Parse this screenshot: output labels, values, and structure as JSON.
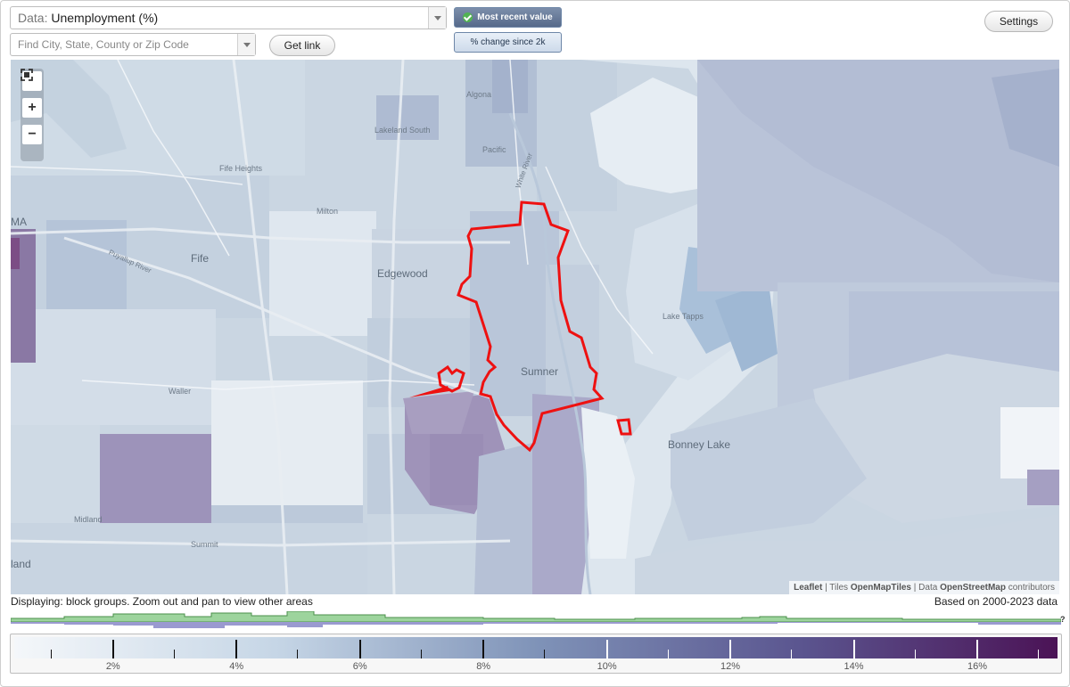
{
  "controls": {
    "data_label": "Data:",
    "data_value": "Unemployment (%)",
    "search_placeholder": "Find City, State, County or Zip Code",
    "get_link": "Get link",
    "most_recent": "Most recent value",
    "pct_change": "% change since 2k",
    "settings": "Settings"
  },
  "map": {
    "highlighted_place": "Sumner",
    "outline_color": "#ee1111",
    "labels": [
      {
        "text": "Algona",
        "size": "small"
      },
      {
        "text": "Lakeland South",
        "size": "small"
      },
      {
        "text": "Pacific",
        "size": "small"
      },
      {
        "text": "White River",
        "size": "small"
      },
      {
        "text": "Fife Heights",
        "size": "small"
      },
      {
        "text": "Milton",
        "size": "small"
      },
      {
        "text": "MA",
        "size": "big"
      },
      {
        "text": "Fife",
        "size": "big"
      },
      {
        "text": "Edgewood",
        "size": "big"
      },
      {
        "text": "Lake Tapps",
        "size": "small"
      },
      {
        "text": "Sumner",
        "size": "big"
      },
      {
        "text": "Waller",
        "size": "small"
      },
      {
        "text": "Bonney Lake",
        "size": "big"
      },
      {
        "text": "Midland",
        "size": "small"
      },
      {
        "text": "Summit",
        "size": "small"
      },
      {
        "text": "land",
        "size": "big"
      },
      {
        "text": "Puyallup River",
        "size": "small"
      }
    ],
    "attribution": {
      "leaflet": "Leaflet",
      "tiles_prefix": "| Tiles",
      "tiles": "OpenMapTiles",
      "data_prefix": "| Data",
      "data": "OpenStreetMap",
      "suffix": "contributors"
    }
  },
  "status": {
    "displaying": "Displaying: block groups. Zoom out and pan to view other areas",
    "based_on": "Based on 2000-2023 data",
    "help": "?"
  },
  "legend": {
    "min": 0.4,
    "max": 17.3,
    "colors": [
      "#f4f7fa",
      "#c6d6e6",
      "#7f93b8",
      "#5b5690",
      "#4b1356"
    ],
    "major_ticks": [
      2,
      4,
      6,
      8,
      10,
      12,
      14,
      16
    ],
    "tick_labels": [
      "2%",
      "4%",
      "6%",
      "8%",
      "10%",
      "12%",
      "14%",
      "16%"
    ]
  }
}
